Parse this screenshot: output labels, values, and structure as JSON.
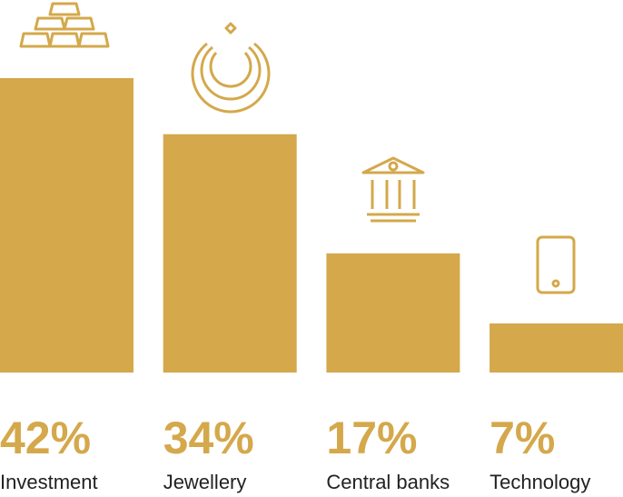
{
  "chart_data": {
    "type": "bar",
    "categories": [
      "Investment",
      "Jewellery",
      "Central banks",
      "Technology"
    ],
    "values": [
      42,
      34,
      17,
      7
    ],
    "value_labels": [
      "42%",
      "34%",
      "17%",
      "7%"
    ],
    "color": "#d4a84b"
  }
}
